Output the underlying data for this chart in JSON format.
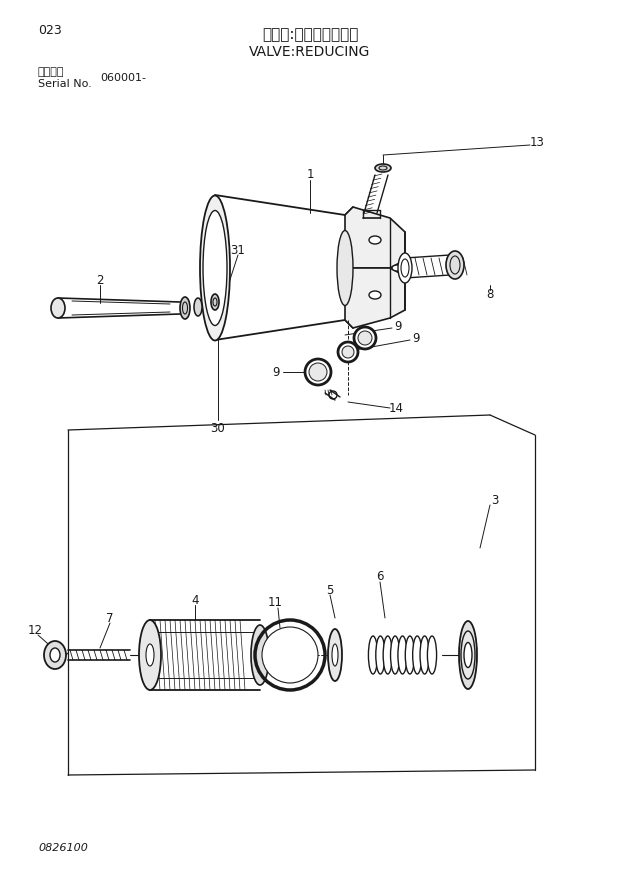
{
  "title_jp": "バルブ:レデューシング",
  "title_en": "VALVE:REDUCING",
  "page_num": "023",
  "serial_label_jp": "適用号機",
  "serial_label_en": "Serial No.",
  "serial_value": "060001-",
  "bottom_code": "0826100",
  "bg_color": "#ffffff",
  "line_color": "#1a1a1a",
  "text_color": "#1a1a1a"
}
